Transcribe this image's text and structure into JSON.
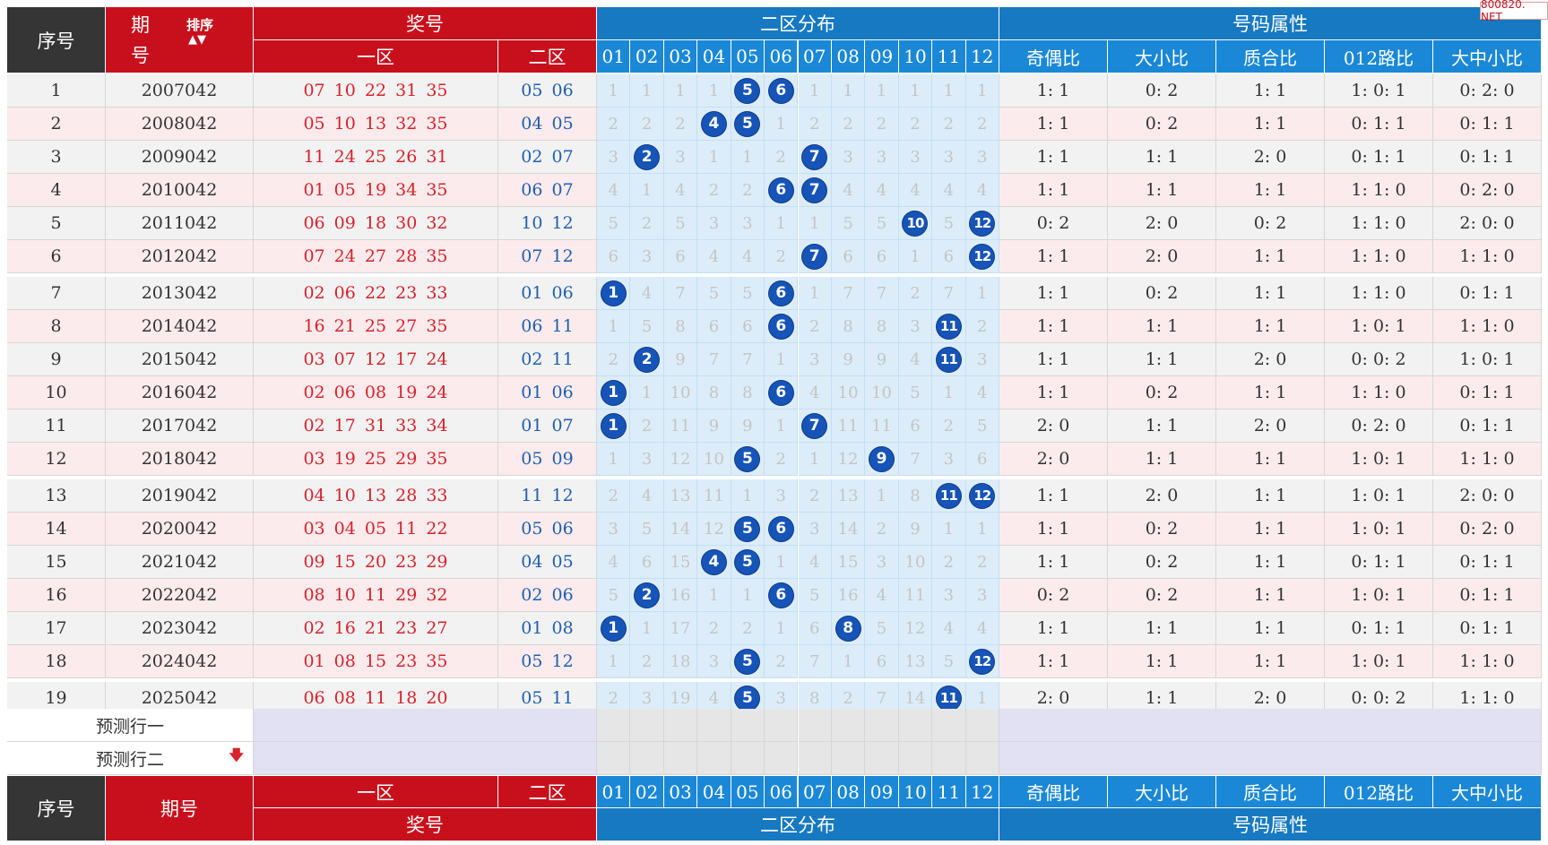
{
  "watermark": "800820. NET",
  "header": {
    "seq": "序号",
    "period_top": "期",
    "period_bottom": "号",
    "sort_label": "排序",
    "sort_arrows": "▲▼",
    "jianghao": "奖号",
    "zone1": "一区",
    "zone2": "二区",
    "dist": "二区分布",
    "attr": "号码属性",
    "cols": [
      "01",
      "02",
      "03",
      "04",
      "05",
      "06",
      "07",
      "08",
      "09",
      "10",
      "11",
      "12"
    ],
    "attrs": [
      "奇偶比",
      "大小比",
      "质合比",
      "012路比",
      "大中小比"
    ]
  },
  "rows": [
    {
      "seq": "1",
      "period": "2007042",
      "zone1": "07 10 22 31 35",
      "zone2": "05 06",
      "dist": [
        "1",
        "1",
        "1",
        "1",
        "5",
        "6",
        "1",
        "1",
        "1",
        "1",
        "1",
        "1"
      ],
      "hit": [
        false,
        false,
        false,
        false,
        true,
        true,
        false,
        false,
        false,
        false,
        false,
        false
      ],
      "attrs": [
        "1: 1",
        "0: 2",
        "1: 1",
        "1: 0: 1",
        "0: 2: 0"
      ]
    },
    {
      "seq": "2",
      "period": "2008042",
      "zone1": "05 10 13 32 35",
      "zone2": "04 05",
      "dist": [
        "2",
        "2",
        "2",
        "4",
        "5",
        "1",
        "2",
        "2",
        "2",
        "2",
        "2",
        "2"
      ],
      "hit": [
        false,
        false,
        false,
        true,
        true,
        false,
        false,
        false,
        false,
        false,
        false,
        false
      ],
      "attrs": [
        "1: 1",
        "0: 2",
        "1: 1",
        "0: 1: 1",
        "0: 1: 1"
      ]
    },
    {
      "seq": "3",
      "period": "2009042",
      "zone1": "11 24 25 26 31",
      "zone2": "02 07",
      "dist": [
        "3",
        "2",
        "3",
        "1",
        "1",
        "2",
        "7",
        "3",
        "3",
        "3",
        "3",
        "3"
      ],
      "hit": [
        false,
        true,
        false,
        false,
        false,
        false,
        true,
        false,
        false,
        false,
        false,
        false
      ],
      "attrs": [
        "1: 1",
        "1: 1",
        "2: 0",
        "0: 1: 1",
        "0: 1: 1"
      ]
    },
    {
      "seq": "4",
      "period": "2010042",
      "zone1": "01 05 19 34 35",
      "zone2": "06 07",
      "dist": [
        "4",
        "1",
        "4",
        "2",
        "2",
        "6",
        "7",
        "4",
        "4",
        "4",
        "4",
        "4"
      ],
      "hit": [
        false,
        false,
        false,
        false,
        false,
        true,
        true,
        false,
        false,
        false,
        false,
        false
      ],
      "attrs": [
        "1: 1",
        "1: 1",
        "1: 1",
        "1: 1: 0",
        "0: 2: 0"
      ]
    },
    {
      "seq": "5",
      "period": "2011042",
      "zone1": "06 09 18 30 32",
      "zone2": "10 12",
      "dist": [
        "5",
        "2",
        "5",
        "3",
        "3",
        "1",
        "1",
        "5",
        "5",
        "10",
        "5",
        "12"
      ],
      "hit": [
        false,
        false,
        false,
        false,
        false,
        false,
        false,
        false,
        false,
        true,
        false,
        true
      ],
      "attrs": [
        "0: 2",
        "2: 0",
        "0: 2",
        "1: 1: 0",
        "2: 0: 0"
      ]
    },
    {
      "seq": "6",
      "period": "2012042",
      "zone1": "07 24 27 28 35",
      "zone2": "07 12",
      "dist": [
        "6",
        "3",
        "6",
        "4",
        "4",
        "2",
        "7",
        "6",
        "6",
        "1",
        "6",
        "12"
      ],
      "hit": [
        false,
        false,
        false,
        false,
        false,
        false,
        true,
        false,
        false,
        false,
        false,
        true
      ],
      "attrs": [
        "1: 1",
        "2: 0",
        "1: 1",
        "1: 1: 0",
        "1: 1: 0"
      ]
    },
    {
      "seq": "7",
      "period": "2013042",
      "zone1": "02 06 22 23 33",
      "zone2": "01 06",
      "dist": [
        "1",
        "4",
        "7",
        "5",
        "5",
        "6",
        "1",
        "7",
        "7",
        "2",
        "7",
        "1"
      ],
      "hit": [
        true,
        false,
        false,
        false,
        false,
        true,
        false,
        false,
        false,
        false,
        false,
        false
      ],
      "attrs": [
        "1: 1",
        "0: 2",
        "1: 1",
        "1: 1: 0",
        "0: 1: 1"
      ]
    },
    {
      "seq": "8",
      "period": "2014042",
      "zone1": "16 21 25 27 35",
      "zone2": "06 11",
      "dist": [
        "1",
        "5",
        "8",
        "6",
        "6",
        "6",
        "2",
        "8",
        "8",
        "3",
        "11",
        "2"
      ],
      "hit": [
        false,
        false,
        false,
        false,
        false,
        true,
        false,
        false,
        false,
        false,
        true,
        false
      ],
      "attrs": [
        "1: 1",
        "1: 1",
        "1: 1",
        "1: 0: 1",
        "1: 1: 0"
      ]
    },
    {
      "seq": "9",
      "period": "2015042",
      "zone1": "03 07 12 17 24",
      "zone2": "02 11",
      "dist": [
        "2",
        "2",
        "9",
        "7",
        "7",
        "1",
        "3",
        "9",
        "9",
        "4",
        "11",
        "3"
      ],
      "hit": [
        false,
        true,
        false,
        false,
        false,
        false,
        false,
        false,
        false,
        false,
        true,
        false
      ],
      "attrs": [
        "1: 1",
        "1: 1",
        "2: 0",
        "0: 0: 2",
        "1: 0: 1"
      ]
    },
    {
      "seq": "10",
      "period": "2016042",
      "zone1": "02 06 08 19 24",
      "zone2": "01 06",
      "dist": [
        "1",
        "1",
        "10",
        "8",
        "8",
        "6",
        "4",
        "10",
        "10",
        "5",
        "1",
        "4"
      ],
      "hit": [
        true,
        false,
        false,
        false,
        false,
        true,
        false,
        false,
        false,
        false,
        false,
        false
      ],
      "attrs": [
        "1: 1",
        "0: 2",
        "1: 1",
        "1: 1: 0",
        "0: 1: 1"
      ]
    },
    {
      "seq": "11",
      "period": "2017042",
      "zone1": "02 17 31 33 34",
      "zone2": "01 07",
      "dist": [
        "1",
        "2",
        "11",
        "9",
        "9",
        "1",
        "7",
        "11",
        "11",
        "6",
        "2",
        "5"
      ],
      "hit": [
        true,
        false,
        false,
        false,
        false,
        false,
        true,
        false,
        false,
        false,
        false,
        false
      ],
      "attrs": [
        "2: 0",
        "1: 1",
        "2: 0",
        "0: 2: 0",
        "0: 1: 1"
      ]
    },
    {
      "seq": "12",
      "period": "2018042",
      "zone1": "03 19 25 29 35",
      "zone2": "05 09",
      "dist": [
        "1",
        "3",
        "12",
        "10",
        "5",
        "2",
        "1",
        "12",
        "9",
        "7",
        "3",
        "6"
      ],
      "hit": [
        false,
        false,
        false,
        false,
        true,
        false,
        false,
        false,
        true,
        false,
        false,
        false
      ],
      "attrs": [
        "2: 0",
        "1: 1",
        "1: 1",
        "1: 0: 1",
        "1: 1: 0"
      ]
    },
    {
      "seq": "13",
      "period": "2019042",
      "zone1": "04 10 13 28 33",
      "zone2": "11 12",
      "dist": [
        "2",
        "4",
        "13",
        "11",
        "1",
        "3",
        "2",
        "13",
        "1",
        "8",
        "11",
        "12"
      ],
      "hit": [
        false,
        false,
        false,
        false,
        false,
        false,
        false,
        false,
        false,
        false,
        true,
        true
      ],
      "attrs": [
        "1: 1",
        "2: 0",
        "1: 1",
        "1: 0: 1",
        "2: 0: 0"
      ]
    },
    {
      "seq": "14",
      "period": "2020042",
      "zone1": "03 04 05 11 22",
      "zone2": "05 06",
      "dist": [
        "3",
        "5",
        "14",
        "12",
        "5",
        "6",
        "3",
        "14",
        "2",
        "9",
        "1",
        "1"
      ],
      "hit": [
        false,
        false,
        false,
        false,
        true,
        true,
        false,
        false,
        false,
        false,
        false,
        false
      ],
      "attrs": [
        "1: 1",
        "0: 2",
        "1: 1",
        "1: 0: 1",
        "0: 2: 0"
      ]
    },
    {
      "seq": "15",
      "period": "2021042",
      "zone1": "09 15 20 23 29",
      "zone2": "04 05",
      "dist": [
        "4",
        "6",
        "15",
        "4",
        "5",
        "1",
        "4",
        "15",
        "3",
        "10",
        "2",
        "2"
      ],
      "hit": [
        false,
        false,
        false,
        true,
        true,
        false,
        false,
        false,
        false,
        false,
        false,
        false
      ],
      "attrs": [
        "1: 1",
        "0: 2",
        "1: 1",
        "0: 1: 1",
        "0: 1: 1"
      ]
    },
    {
      "seq": "16",
      "period": "2022042",
      "zone1": "08 10 11 29 32",
      "zone2": "02 06",
      "dist": [
        "5",
        "2",
        "16",
        "1",
        "1",
        "6",
        "5",
        "16",
        "4",
        "11",
        "3",
        "3"
      ],
      "hit": [
        false,
        true,
        false,
        false,
        false,
        true,
        false,
        false,
        false,
        false,
        false,
        false
      ],
      "attrs": [
        "0: 2",
        "0: 2",
        "1: 1",
        "1: 0: 1",
        "0: 1: 1"
      ]
    },
    {
      "seq": "17",
      "period": "2023042",
      "zone1": "02 16 21 23 27",
      "zone2": "01 08",
      "dist": [
        "1",
        "1",
        "17",
        "2",
        "2",
        "1",
        "6",
        "8",
        "5",
        "12",
        "4",
        "4"
      ],
      "hit": [
        true,
        false,
        false,
        false,
        false,
        false,
        false,
        true,
        false,
        false,
        false,
        false
      ],
      "attrs": [
        "1: 1",
        "1: 1",
        "1: 1",
        "0: 1: 1",
        "0: 1: 1"
      ]
    },
    {
      "seq": "18",
      "period": "2024042",
      "zone1": "01 08 15 23 35",
      "zone2": "05 12",
      "dist": [
        "1",
        "2",
        "18",
        "3",
        "5",
        "2",
        "7",
        "1",
        "6",
        "13",
        "5",
        "12"
      ],
      "hit": [
        false,
        false,
        false,
        false,
        true,
        false,
        false,
        false,
        false,
        false,
        false,
        true
      ],
      "attrs": [
        "1: 1",
        "1: 1",
        "1: 1",
        "1: 0: 1",
        "1: 1: 0"
      ]
    },
    {
      "seq": "19",
      "period": "2025042",
      "zone1": "06 08 11 18 20",
      "zone2": "05 11",
      "dist": [
        "2",
        "3",
        "19",
        "4",
        "5",
        "3",
        "8",
        "2",
        "7",
        "14",
        "11",
        "1"
      ],
      "hit": [
        false,
        false,
        false,
        false,
        true,
        false,
        false,
        false,
        false,
        false,
        true,
        false
      ],
      "attrs": [
        "2: 0",
        "1: 1",
        "2: 0",
        "0: 0: 2",
        "1: 1: 0"
      ]
    }
  ],
  "predict": {
    "row1": "预测行一",
    "row2": "预测行二",
    "arrow": "🡇"
  },
  "footer": {
    "seq": "序号",
    "period": "期号"
  }
}
